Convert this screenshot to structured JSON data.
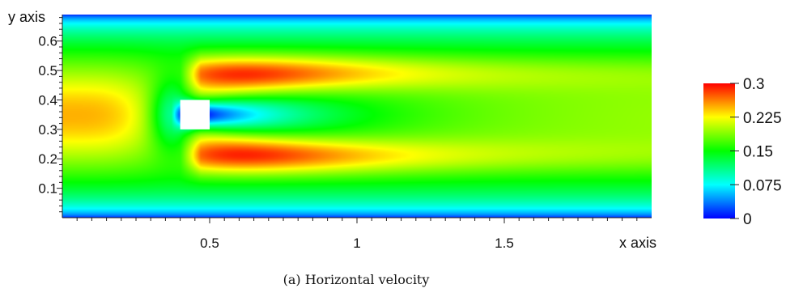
{
  "chart_data": {
    "type": "heatmap",
    "xlabel": "x axis",
    "ylabel": "y axis",
    "xlim": [
      0,
      2.0
    ],
    "ylim": [
      0,
      0.69
    ],
    "x_ticks": [
      {
        "value": 0.5,
        "label": "0.5"
      },
      {
        "value": 1.0,
        "label": "1"
      },
      {
        "value": 1.5,
        "label": "1.5"
      }
    ],
    "y_ticks": [
      {
        "value": 0.1,
        "label": "0.1"
      },
      {
        "value": 0.2,
        "label": "0.2"
      },
      {
        "value": 0.3,
        "label": "0.3"
      },
      {
        "value": 0.4,
        "label": "0.4"
      },
      {
        "value": 0.5,
        "label": "0.5"
      },
      {
        "value": 0.6,
        "label": "0.6"
      }
    ],
    "obstacle": {
      "x": [
        0.4,
        0.5
      ],
      "y": [
        0.3,
        0.4
      ],
      "shape": "square",
      "color": "#ffffff"
    },
    "field": {
      "name": "horizontal velocity",
      "inlet_max": 0.25,
      "wake_min": 0.0,
      "jet_max": 0.3
    },
    "colorbar": {
      "range": [
        0,
        0.3
      ],
      "ticks": [
        {
          "value": 0.3,
          "label": "0.3"
        },
        {
          "value": 0.225,
          "label": "0.225"
        },
        {
          "value": 0.15,
          "label": "0.15"
        },
        {
          "value": 0.075,
          "label": "0.075"
        },
        {
          "value": 0,
          "label": "0"
        }
      ],
      "colors": [
        "#0000ff",
        "#00ffff",
        "#00ff00",
        "#ffff00",
        "#ff0000"
      ]
    },
    "caption": "(a) Horizontal velocity"
  }
}
